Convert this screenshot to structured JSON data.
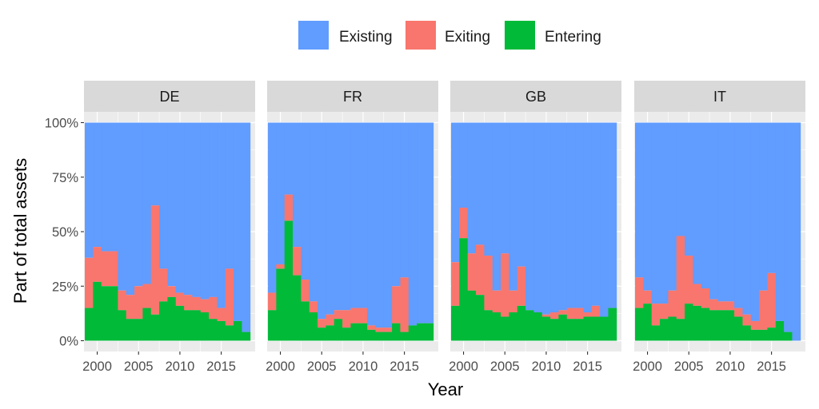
{
  "chart_data": {
    "type": "bar",
    "stacked": true,
    "facet_by": "country",
    "xlabel": "Year",
    "ylabel": "Part of total assets",
    "ylim": [
      0,
      1
    ],
    "y_ticks": [
      "0%",
      "25%",
      "50%",
      "75%",
      "100%"
    ],
    "y_tick_values": [
      0,
      0.25,
      0.5,
      0.75,
      1.0
    ],
    "x_ticks": [
      "2000",
      "2005",
      "2010",
      "2015"
    ],
    "x_tick_values": [
      2000,
      2005,
      2010,
      2015
    ],
    "xlim": [
      1998.4,
      2019.1
    ],
    "years": [
      1999,
      2000,
      2001,
      2002,
      2003,
      2004,
      2005,
      2006,
      2007,
      2008,
      2009,
      2010,
      2011,
      2012,
      2013,
      2014,
      2015,
      2016,
      2017,
      2018
    ],
    "legend": {
      "position": "top",
      "entries": [
        "Existing",
        "Exiting",
        "Entering"
      ]
    },
    "colors": {
      "Existing": "#619CFF",
      "Exiting": "#F8766D",
      "Entering": "#00BA38"
    },
    "grid": true,
    "panels": [
      {
        "name": "DE",
        "entering": [
          0.15,
          0.27,
          0.25,
          0.25,
          0.14,
          0.1,
          0.1,
          0.15,
          0.12,
          0.18,
          0.2,
          0.16,
          0.14,
          0.14,
          0.13,
          0.1,
          0.09,
          0.07,
          0.09,
          0.04
        ],
        "exiting": [
          0.23,
          0.16,
          0.16,
          0.16,
          0.09,
          0.11,
          0.15,
          0.11,
          0.5,
          0.15,
          0.05,
          0.06,
          0.07,
          0.06,
          0.06,
          0.1,
          0.06,
          0.26,
          0.0,
          0.0
        ]
      },
      {
        "name": "FR",
        "entering": [
          0.14,
          0.33,
          0.55,
          0.3,
          0.18,
          0.13,
          0.06,
          0.07,
          0.1,
          0.06,
          0.08,
          0.08,
          0.05,
          0.04,
          0.04,
          0.08,
          0.04,
          0.07,
          0.08,
          0.08
        ],
        "exiting": [
          0.08,
          0.02,
          0.12,
          0.13,
          0.1,
          0.05,
          0.04,
          0.05,
          0.04,
          0.08,
          0.07,
          0.07,
          0.02,
          0.02,
          0.02,
          0.17,
          0.25,
          0.0,
          0.0,
          0.0
        ]
      },
      {
        "name": "GB",
        "entering": [
          0.16,
          0.47,
          0.23,
          0.21,
          0.14,
          0.13,
          0.11,
          0.13,
          0.16,
          0.14,
          0.13,
          0.11,
          0.1,
          0.12,
          0.1,
          0.1,
          0.11,
          0.11,
          0.11,
          0.15
        ],
        "exiting": [
          0.2,
          0.14,
          0.17,
          0.23,
          0.25,
          0.1,
          0.29,
          0.1,
          0.18,
          0.0,
          0.0,
          0.01,
          0.03,
          0.02,
          0.05,
          0.05,
          0.02,
          0.05,
          0.0,
          0.0
        ]
      },
      {
        "name": "IT",
        "entering": [
          0.15,
          0.17,
          0.07,
          0.1,
          0.11,
          0.1,
          0.17,
          0.16,
          0.15,
          0.14,
          0.14,
          0.14,
          0.11,
          0.07,
          0.05,
          0.05,
          0.06,
          0.09,
          0.04,
          0.0
        ],
        "exiting": [
          0.14,
          0.06,
          0.1,
          0.07,
          0.12,
          0.38,
          0.22,
          0.1,
          0.09,
          0.05,
          0.04,
          0.04,
          0.04,
          0.05,
          0.04,
          0.18,
          0.25,
          0.0,
          0.0,
          0.0
        ]
      }
    ]
  }
}
